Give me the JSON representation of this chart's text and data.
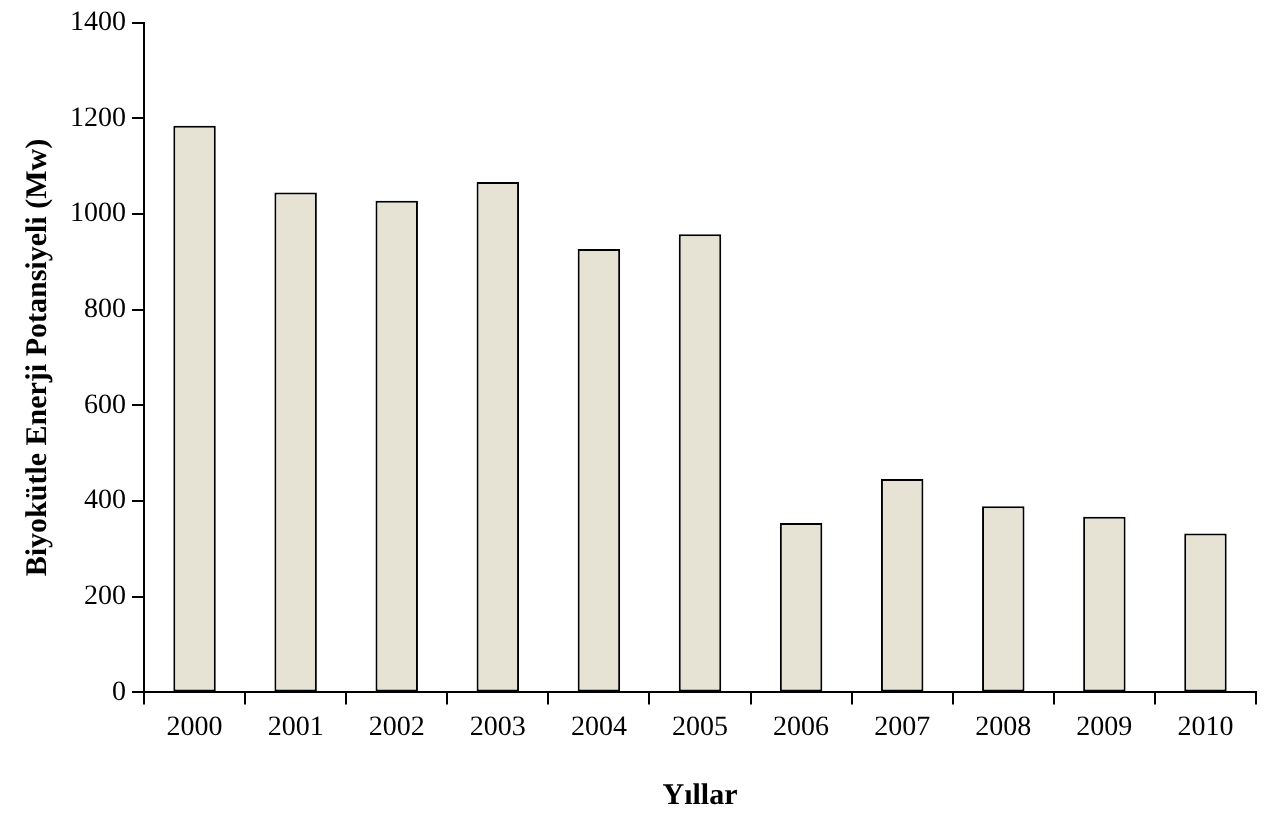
{
  "chart_data": {
    "type": "bar",
    "xlabel": "Yıllar",
    "ylabel": "Biyokütle Enerji Potansiyeli (Mw)",
    "categories": [
      "2000",
      "2001",
      "2002",
      "2003",
      "2004",
      "2005",
      "2006",
      "2007",
      "2008",
      "2009",
      "2010"
    ],
    "values": [
      1185,
      1045,
      1028,
      1067,
      927,
      958,
      354,
      446,
      389,
      367,
      332
    ],
    "color": "#e6e2d4",
    "ylim": [
      0,
      1400
    ],
    "yticks": [
      0,
      200,
      400,
      600,
      800,
      1000,
      1200,
      1400
    ],
    "grid": false,
    "legend": false
  }
}
